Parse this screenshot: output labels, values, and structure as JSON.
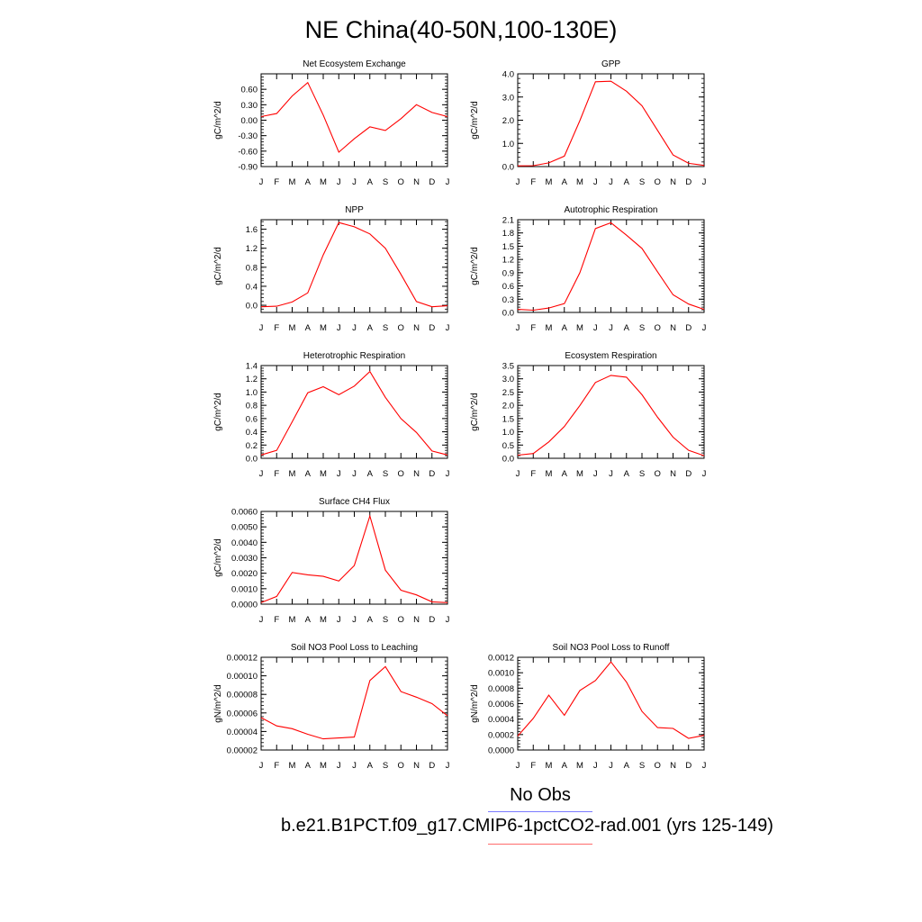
{
  "figure": {
    "title": "NE China(40-50N,100-130E)",
    "legend": {
      "obs_label": "No Obs",
      "obs_color": "#7a7aff",
      "model_label": "b.e21.B1PCT.f09_g17.CMIP6-1pctCO2-rad.001 (yrs 125-149)",
      "model_color": "#ff6b6b"
    }
  },
  "chart_data": [
    {
      "type": "line",
      "title": "Net Ecosystem Exchange",
      "ylabel": "gC/m^2/d",
      "categories": [
        "J",
        "F",
        "M",
        "A",
        "M",
        "J",
        "J",
        "A",
        "S",
        "O",
        "N",
        "D",
        "J"
      ],
      "yticks": [
        "0.60",
        "0.30",
        "0.00",
        "-0.30",
        "-0.60",
        "-0.90"
      ],
      "ylim": [
        -0.9,
        0.9
      ],
      "values": [
        0.07,
        0.13,
        0.47,
        0.73,
        0.1,
        -0.62,
        -0.36,
        -0.13,
        -0.2,
        0.03,
        0.3,
        0.15,
        0.07
      ],
      "color": "#ff0000"
    },
    {
      "type": "line",
      "title": "GPP",
      "ylabel": "gC/m^2/d",
      "categories": [
        "J",
        "F",
        "M",
        "A",
        "M",
        "J",
        "J",
        "A",
        "S",
        "O",
        "N",
        "D",
        "J"
      ],
      "yticks": [
        "4.0",
        "3.0",
        "2.0",
        "1.0",
        "0.0"
      ],
      "ylim": [
        0,
        4.0
      ],
      "values": [
        0.03,
        0.04,
        0.16,
        0.45,
        1.98,
        3.66,
        3.68,
        3.25,
        2.62,
        1.56,
        0.5,
        0.14,
        0.05
      ],
      "color": "#ff0000"
    },
    {
      "type": "line",
      "title": "NPP",
      "ylabel": "gC/m^2/d",
      "categories": [
        "J",
        "F",
        "M",
        "A",
        "M",
        "J",
        "J",
        "A",
        "S",
        "O",
        "N",
        "D",
        "J"
      ],
      "yticks": [
        "1.6",
        "1.2",
        "0.8",
        "0.4",
        "0.0"
      ],
      "ylim": [
        -0.15,
        1.8
      ],
      "values": [
        -0.03,
        -0.02,
        0.07,
        0.26,
        1.06,
        1.74,
        1.65,
        1.5,
        1.2,
        0.65,
        0.08,
        -0.03,
        -0.01
      ],
      "color": "#ff0000"
    },
    {
      "type": "line",
      "title": "Autotrophic Respiration",
      "ylabel": "gC/m^2/d",
      "categories": [
        "J",
        "F",
        "M",
        "A",
        "M",
        "J",
        "J",
        "A",
        "S",
        "O",
        "N",
        "D",
        "J"
      ],
      "yticks": [
        "2.1",
        "1.8",
        "1.5",
        "1.2",
        "0.9",
        "0.6",
        "0.3",
        "0.0"
      ],
      "ylim": [
        0,
        2.1
      ],
      "values": [
        0.07,
        0.05,
        0.1,
        0.2,
        0.9,
        1.9,
        2.03,
        1.75,
        1.45,
        0.92,
        0.4,
        0.19,
        0.07
      ],
      "color": "#ff0000"
    },
    {
      "type": "line",
      "title": "Heterotrophic Respiration",
      "ylabel": "gC/m^2/d",
      "categories": [
        "J",
        "F",
        "M",
        "A",
        "M",
        "J",
        "J",
        "A",
        "S",
        "O",
        "N",
        "D",
        "J"
      ],
      "yticks": [
        "1.4",
        "1.2",
        "1.0",
        "0.8",
        "0.6",
        "0.4",
        "0.2",
        "0.0"
      ],
      "ylim": [
        0,
        1.4
      ],
      "values": [
        0.05,
        0.12,
        0.55,
        0.99,
        1.08,
        0.96,
        1.09,
        1.31,
        0.92,
        0.6,
        0.39,
        0.11,
        0.05
      ],
      "color": "#ff0000"
    },
    {
      "type": "line",
      "title": "Ecosystem Respiration",
      "ylabel": "gC/m^2/d",
      "categories": [
        "J",
        "F",
        "M",
        "A",
        "M",
        "J",
        "J",
        "A",
        "S",
        "O",
        "N",
        "D",
        "J"
      ],
      "yticks": [
        "3.5",
        "3.0",
        "2.5",
        "2.0",
        "1.5",
        "1.0",
        "0.5",
        "0.0"
      ],
      "ylim": [
        0,
        3.5
      ],
      "values": [
        0.12,
        0.18,
        0.62,
        1.2,
        1.99,
        2.86,
        3.13,
        3.06,
        2.4,
        1.55,
        0.8,
        0.3,
        0.1
      ],
      "color": "#ff0000"
    },
    {
      "type": "line",
      "title": "Surface CH4 Flux",
      "ylabel": "gC/m^2/d",
      "categories": [
        "J",
        "F",
        "M",
        "A",
        "M",
        "J",
        "J",
        "A",
        "S",
        "O",
        "N",
        "D",
        "J"
      ],
      "yticks": [
        "0.0060",
        "0.0050",
        "0.0040",
        "0.0030",
        "0.0020",
        "0.0010",
        "0.0000"
      ],
      "ylim": [
        0,
        0.006
      ],
      "values": [
        0.0001,
        0.0005,
        0.00205,
        0.0019,
        0.0018,
        0.0015,
        0.0025,
        0.0057,
        0.0022,
        0.0009,
        0.0006,
        0.00015,
        0.0001
      ],
      "color": "#ff0000"
    },
    {
      "type": "line",
      "title": "Soil NO3 Pool Loss to Leaching",
      "ylabel": "gN/m^2/d",
      "categories": [
        "J",
        "F",
        "M",
        "A",
        "M",
        "J",
        "J",
        "A",
        "S",
        "O",
        "N",
        "D",
        "J"
      ],
      "yticks": [
        "0.00012",
        "0.00010",
        "0.00008",
        "0.00006",
        "0.00004",
        "0.00002"
      ],
      "ylim": [
        2e-05,
        0.00012
      ],
      "values": [
        5.5e-05,
        4.6e-05,
        4.3e-05,
        3.7e-05,
        3.2e-05,
        3.3e-05,
        3.4e-05,
        9.5e-05,
        0.00011,
        8.3e-05,
        7.7e-05,
        7e-05,
        5.7e-05
      ],
      "color": "#ff0000"
    },
    {
      "type": "line",
      "title": "Soil NO3 Pool Loss to Runoff",
      "ylabel": "gN/m^2/d",
      "categories": [
        "J",
        "F",
        "M",
        "A",
        "M",
        "J",
        "J",
        "A",
        "S",
        "O",
        "N",
        "D",
        "J"
      ],
      "yticks": [
        "0.0012",
        "0.0010",
        "0.0008",
        "0.0006",
        "0.0004",
        "0.0002",
        "0.0000"
      ],
      "ylim": [
        0,
        0.0012
      ],
      "values": [
        0.00018,
        0.00041,
        0.00071,
        0.00045,
        0.00077,
        0.0009,
        0.00114,
        0.00088,
        0.0005,
        0.00029,
        0.00028,
        0.00015,
        0.00019
      ],
      "color": "#ff0000"
    }
  ]
}
